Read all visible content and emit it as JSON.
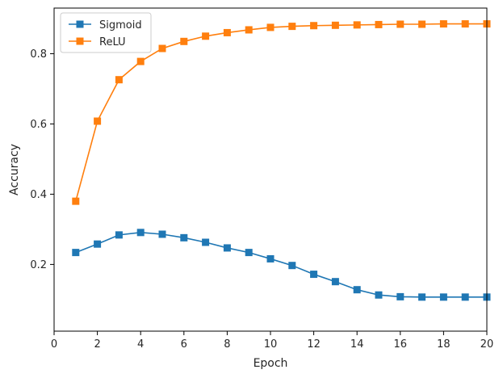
{
  "chart_data": {
    "type": "line",
    "title": "",
    "xlabel": "Epoch",
    "ylabel": "Accuracy",
    "xlim": [
      0,
      20
    ],
    "ylim": [
      0.01,
      0.93
    ],
    "xticks": [
      0,
      2,
      4,
      6,
      8,
      10,
      12,
      14,
      16,
      18,
      20
    ],
    "xtick_labels": [
      "0",
      "2",
      "4",
      "6",
      "8",
      "10",
      "12",
      "14",
      "16",
      "18",
      "20"
    ],
    "yticks": [
      0.2,
      0.4,
      0.6,
      0.8
    ],
    "ytick_labels": [
      "0.2",
      "0.4",
      "0.6",
      "0.8"
    ],
    "grid": false,
    "legend": {
      "placement": "top-left"
    },
    "marker": "square",
    "x": [
      1,
      2,
      3,
      4,
      5,
      6,
      7,
      8,
      9,
      10,
      11,
      12,
      13,
      14,
      15,
      16,
      17,
      18,
      19,
      20
    ],
    "series": [
      {
        "name": "Sigmoid",
        "color": "#1f77b4",
        "values": [
          0.234,
          0.258,
          0.284,
          0.291,
          0.286,
          0.276,
          0.263,
          0.247,
          0.234,
          0.216,
          0.197,
          0.172,
          0.151,
          0.128,
          0.113,
          0.108,
          0.107,
          0.107,
          0.107,
          0.107
        ]
      },
      {
        "name": "ReLU",
        "color": "#ff7f0e",
        "values": [
          0.38,
          0.608,
          0.726,
          0.778,
          0.815,
          0.835,
          0.85,
          0.86,
          0.868,
          0.875,
          0.878,
          0.88,
          0.881,
          0.882,
          0.883,
          0.884,
          0.884,
          0.885,
          0.885,
          0.885
        ]
      }
    ]
  }
}
